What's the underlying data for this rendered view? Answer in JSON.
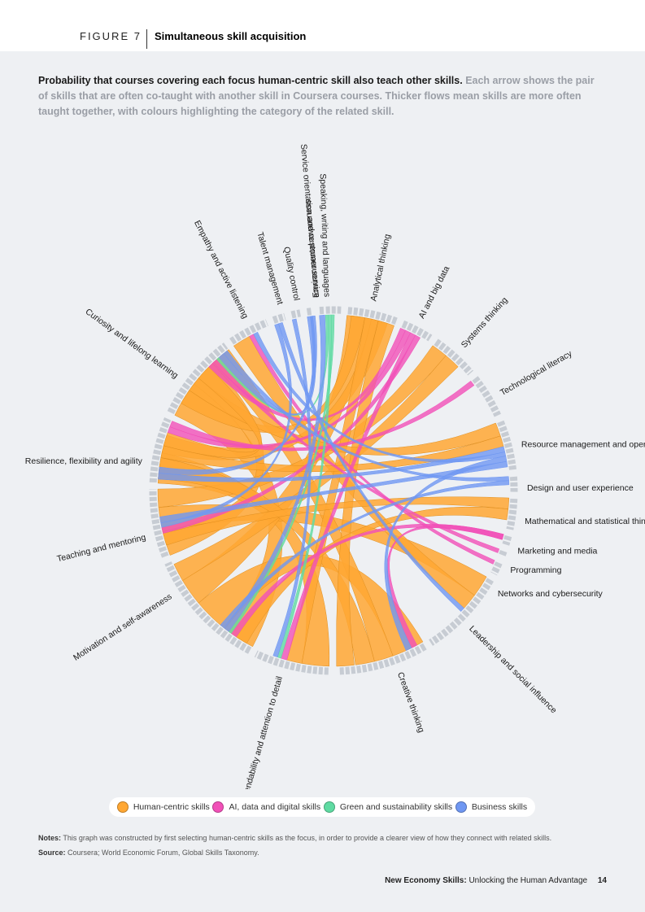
{
  "figure": {
    "number": "FIGURE 7",
    "title": "Simultaneous skill acquisition"
  },
  "intro": {
    "bold": "Probability that courses covering each focus human-centric skill also teach other skills.",
    "grey": "Each arrow shows the pair of skills that are often co-taught with another skill in Coursera courses. Thicker flows mean skills are more often taught together, with colours highlighting the category of the related skill."
  },
  "colors": {
    "human": "#ffa733",
    "ai": "#f150b8",
    "green": "#5fdba2",
    "business": "#6f97f2"
  },
  "skills": [
    {
      "name": "Environmental awareness"
    },
    {
      "name": "Analytical thinking"
    },
    {
      "name": "AI and big data"
    },
    {
      "name": "Systems thinking"
    },
    {
      "name": "Technological literacy"
    },
    {
      "name": "Resource management and operations"
    },
    {
      "name": "Design and user experience"
    },
    {
      "name": "Mathematical and statistical thinking"
    },
    {
      "name": "Marketing and media"
    },
    {
      "name": "Programming"
    },
    {
      "name": "Networks and cybersecurity"
    },
    {
      "name": "Leadership and social influence"
    },
    {
      "name": "Creative thinking"
    },
    {
      "name": "Dependability and attention to detail"
    },
    {
      "name": "Motivation and self-awareness"
    },
    {
      "name": "Teaching and mentoring"
    },
    {
      "name": "Resilience, flexibility and agility"
    },
    {
      "name": "Curiosity and lifelong learning"
    },
    {
      "name": "Empathy and active listening"
    },
    {
      "name": "Talent management"
    },
    {
      "name": "Quality control"
    },
    {
      "name": "Service orientation and customer service"
    },
    {
      "name": "Speaking, writing and languages"
    }
  ],
  "legend": [
    {
      "label": "Human-centric skills",
      "color": "#ffa733"
    },
    {
      "label": "AI, data and digital skills",
      "color": "#f150b8"
    },
    {
      "label": "Green and sustainability skills",
      "color": "#5fdba2"
    },
    {
      "label": "Business skills",
      "color": "#6f97f2"
    }
  ],
  "notes": {
    "notes_label": "Notes:",
    "notes_text": "This graph was constructed by first selecting human-centric skills as the focus, in order to provide a clearer view of how they connect with related skills.",
    "source_label": "Source:",
    "source_text": "Coursera; World Economic Forum, Global Skills Taxonomy."
  },
  "footer": {
    "bold": "New Economy Skills:",
    "text": "Unlocking the Human Advantage",
    "page": "14"
  }
}
